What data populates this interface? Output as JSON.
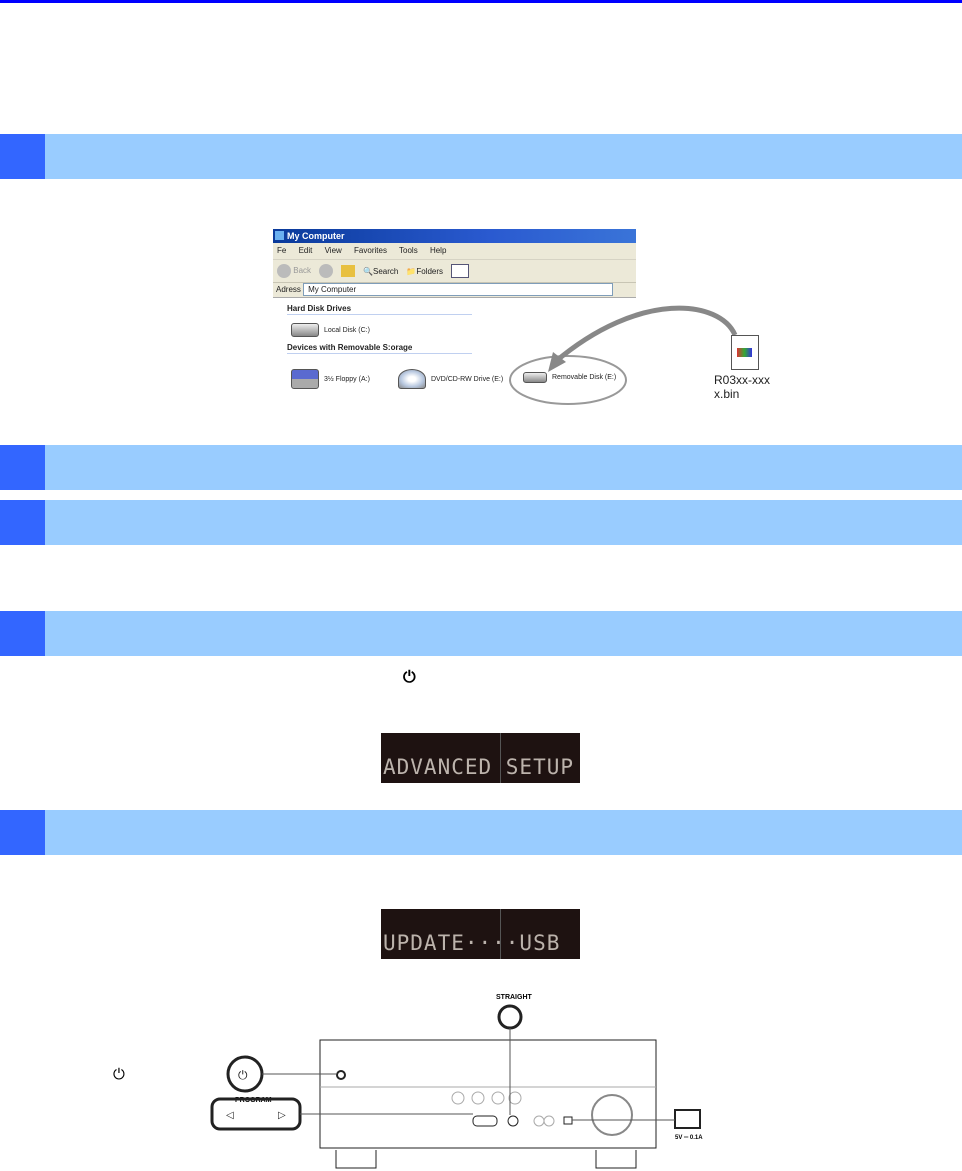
{
  "colors": {
    "rule": "#0000ff",
    "bar": "#99ccff",
    "bar_num": "#3366ff",
    "lcd_bg": "#1e1211"
  },
  "explorer": {
    "title": "My Computer",
    "menu": [
      "Fe",
      "Edit",
      "View",
      "Favorites",
      "Tools",
      "Help"
    ],
    "toolbar": {
      "back": "Back",
      "search": "Search",
      "folders": "Folders"
    },
    "address_label": "Adress",
    "address_value": "My Computer",
    "group_hard": "Hard Disk Drives",
    "local_disk": "Local Disk (C:)",
    "group_removable": "Devices with Removable S:orage",
    "floppy": "3½ Floppy (A:)",
    "dvd": "DVD/CD-RW Drive (E:)",
    "removable": "Removable Disk (E:)"
  },
  "file": {
    "name": "R03xx-xxxx.bin",
    "icon": "file-bin-icon"
  },
  "inline_power_icon": "⏻",
  "lcd1": "ADVANCED SETUP",
  "lcd2": "UPDATE····USB",
  "receiver": {
    "straight_label": "STRAIGHT",
    "program_label": "PROGRAM",
    "usb_label": "5V ═ 0.1A",
    "power_icon": "⏻"
  }
}
